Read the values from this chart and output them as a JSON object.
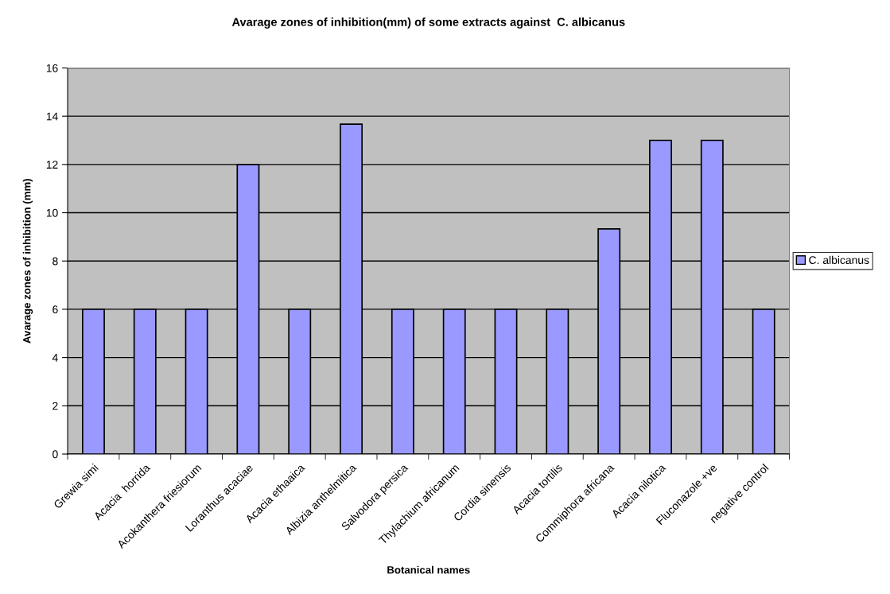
{
  "chart_data": {
    "type": "bar",
    "title": "Avarage zones of inhibition(mm) of some extracts against  C. albicanus",
    "xlabel": "Botanical names",
    "ylabel": "Avarage zones of inhibition (mm)",
    "categories": [
      "Grewia simi",
      "Acacia  horrida",
      "Acokanthera friesiorum",
      "Loranthus acaciae",
      "Acacia ethaaica",
      "Albizia anthelmitica",
      "Salvodora persica",
      "Thylachium africanum",
      "Cordia sinensis",
      "Acacia tortilis",
      "Commiphora africana",
      "Acacia nilotica",
      "Fluconazole +ve",
      "negative control"
    ],
    "series": [
      {
        "name": "C. albicanus",
        "color": "#9999ff",
        "values": [
          6,
          6,
          6,
          12,
          6,
          13.67,
          6,
          6,
          6,
          6,
          9.33,
          13,
          13,
          6
        ]
      }
    ],
    "ylim": [
      0,
      16
    ],
    "yticks": [
      0,
      2,
      4,
      6,
      8,
      10,
      12,
      14,
      16
    ],
    "grid": "y",
    "legend": "right"
  }
}
